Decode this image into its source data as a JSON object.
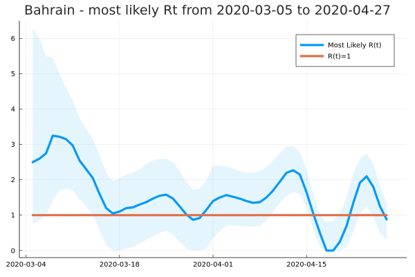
{
  "chart_data": {
    "type": "line",
    "title": "Bahrain - most likely Rt from 2020-03-05 to 2020-04-27",
    "xlabel": "",
    "ylabel": "",
    "x_range": [
      "2020-03-03",
      "2020-04-30"
    ],
    "ylim": [
      -0.2,
      6.5
    ],
    "x_ticks": [
      "2020-03-04",
      "2020-03-18",
      "2020-04-01",
      "2020-04-15"
    ],
    "y_ticks": [
      0,
      1,
      2,
      3,
      4,
      5,
      6
    ],
    "grid": true,
    "legend_position": "top-right",
    "series": [
      {
        "name": "Most Likely R(t)",
        "color": "#009af9",
        "x": [
          "2020-03-05",
          "2020-03-06",
          "2020-03-07",
          "2020-03-08",
          "2020-03-09",
          "2020-03-10",
          "2020-03-11",
          "2020-03-12",
          "2020-03-13",
          "2020-03-14",
          "2020-03-15",
          "2020-03-16",
          "2020-03-17",
          "2020-03-18",
          "2020-03-19",
          "2020-03-20",
          "2020-03-21",
          "2020-03-22",
          "2020-03-23",
          "2020-03-24",
          "2020-03-25",
          "2020-03-26",
          "2020-03-27",
          "2020-03-28",
          "2020-03-29",
          "2020-03-30",
          "2020-03-31",
          "2020-04-01",
          "2020-04-02",
          "2020-04-03",
          "2020-04-04",
          "2020-04-05",
          "2020-04-06",
          "2020-04-07",
          "2020-04-08",
          "2020-04-09",
          "2020-04-10",
          "2020-04-11",
          "2020-04-12",
          "2020-04-13",
          "2020-04-14",
          "2020-04-15",
          "2020-04-16",
          "2020-04-17",
          "2020-04-18",
          "2020-04-19",
          "2020-04-20",
          "2020-04-21",
          "2020-04-22",
          "2020-04-23",
          "2020-04-24",
          "2020-04-25",
          "2020-04-26",
          "2020-04-27"
        ],
        "values": [
          2.5,
          2.6,
          2.75,
          3.25,
          3.22,
          3.15,
          2.97,
          2.55,
          2.3,
          2.05,
          1.6,
          1.2,
          1.05,
          1.1,
          1.2,
          1.22,
          1.3,
          1.37,
          1.47,
          1.55,
          1.58,
          1.47,
          1.25,
          1.02,
          0.87,
          0.92,
          1.15,
          1.4,
          1.5,
          1.57,
          1.52,
          1.47,
          1.4,
          1.35,
          1.37,
          1.5,
          1.7,
          1.95,
          2.2,
          2.27,
          2.15,
          1.65,
          1.05,
          0.5,
          0.0,
          0.0,
          0.25,
          0.7,
          1.35,
          1.92,
          2.1,
          1.8,
          1.25,
          0.88
        ],
        "band_lower": [
          0.75,
          0.85,
          1.0,
          1.4,
          1.7,
          1.75,
          1.7,
          1.45,
          1.25,
          1.0,
          0.6,
          0.15,
          0.0,
          0.0,
          0.05,
          0.1,
          0.2,
          0.3,
          0.4,
          0.5,
          0.55,
          0.45,
          0.25,
          0.05,
          0.0,
          0.0,
          0.05,
          0.35,
          0.55,
          0.7,
          0.72,
          0.7,
          0.68,
          0.67,
          0.7,
          0.85,
          1.1,
          1.35,
          1.55,
          1.65,
          1.6,
          1.2,
          0.6,
          0.1,
          0.0,
          0.0,
          0.0,
          0.1,
          0.55,
          1.05,
          1.25,
          0.95,
          0.5,
          0.3
        ],
        "band_upper": [
          6.3,
          6.0,
          5.5,
          5.45,
          5.0,
          4.6,
          4.25,
          3.75,
          3.45,
          3.15,
          2.7,
          2.2,
          1.95,
          2.05,
          2.15,
          2.2,
          2.3,
          2.45,
          2.55,
          2.6,
          2.6,
          2.5,
          2.25,
          1.95,
          1.72,
          1.75,
          2.0,
          2.4,
          2.4,
          2.38,
          2.32,
          2.25,
          2.2,
          2.2,
          2.25,
          2.35,
          2.55,
          2.75,
          2.95,
          2.95,
          2.8,
          2.3,
          1.6,
          1.0,
          0.8,
          0.85,
          1.05,
          1.5,
          2.2,
          2.6,
          2.75,
          2.45,
          1.85,
          1.35
        ]
      },
      {
        "name": "R(t)=1",
        "color": "#e26f46",
        "x": [
          "2020-03-05",
          "2020-04-27"
        ],
        "values": [
          1,
          1
        ]
      }
    ]
  }
}
